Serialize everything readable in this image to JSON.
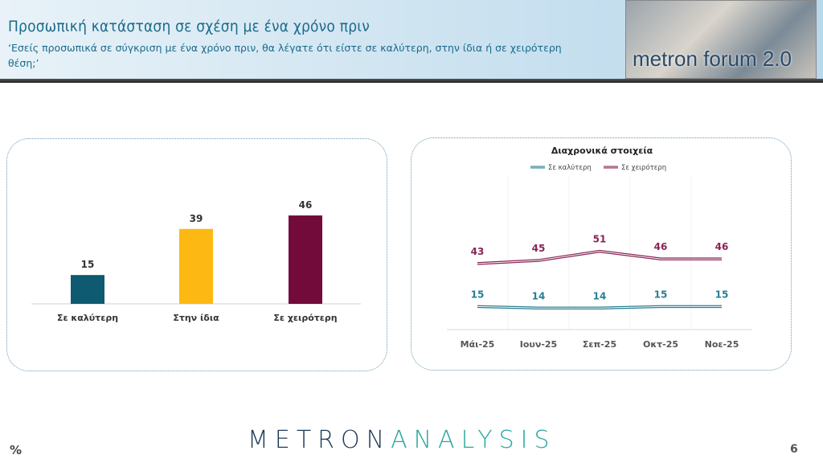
{
  "header": {
    "title": "Προσωπική κατάσταση σε σχέση με ένα χρόνο πριν",
    "subtitle": "‘Εσείς προσωπικά σε σύγκριση με ένα χρόνο πριν, θα λέγατε ότι είστε σε καλύτερη, στην ίδια ή σε χειρότερη θέση;’",
    "logo_text": "metron forum 2.0"
  },
  "footer": {
    "brand_a": "METRON",
    "brand_b": "ANALYSIS",
    "unit": "%",
    "page": "6"
  },
  "chart_data": [
    {
      "type": "bar",
      "categories": [
        "Σε καλύτερη",
        "Στην ίδια",
        "Σε χειρότερη"
      ],
      "values": [
        15,
        39,
        46
      ],
      "colors": [
        "#0e5a70",
        "#fdb813",
        "#720a3a"
      ],
      "ylim": [
        0,
        50
      ]
    },
    {
      "type": "line",
      "title": "Διαχρονικά στοιχεία",
      "categories": [
        "Μάι-25",
        "Ιουν-25",
        "Σεπ-25",
        "Οκτ-25",
        "Νοε-25"
      ],
      "ylim": [
        0,
        100
      ],
      "legend": "top",
      "series": [
        {
          "name": "Σε καλύτερη",
          "values": [
            15,
            14,
            14,
            15,
            15
          ],
          "color": "#2a7f92"
        },
        {
          "name": "Σε χειρότερη",
          "values": [
            43,
            45,
            51,
            46,
            46
          ],
          "color": "#8a2454"
        }
      ]
    }
  ]
}
